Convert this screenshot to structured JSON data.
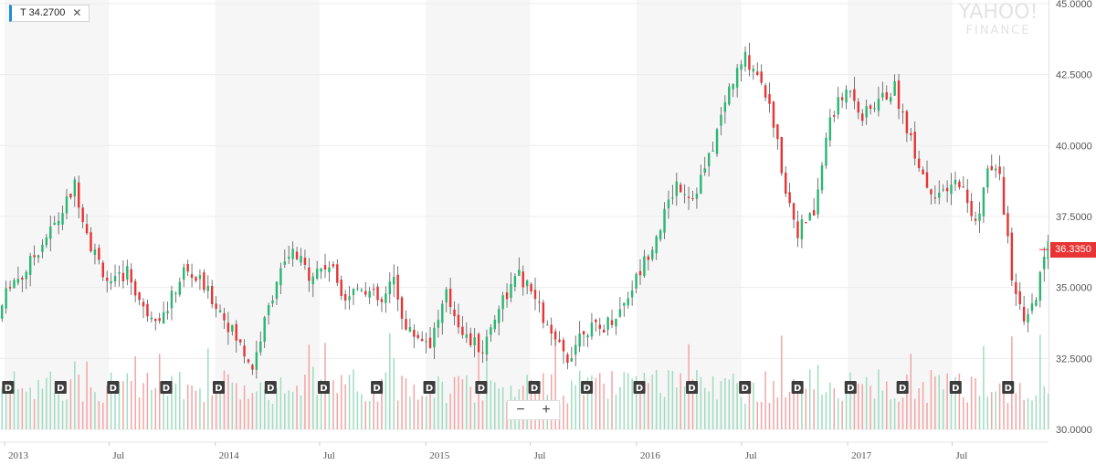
{
  "ticker": {
    "symbol": "T",
    "value": "34.2700",
    "close_icon": "close-icon"
  },
  "brand": {
    "line1": "YAHOO!",
    "line2": "FINANCE"
  },
  "zoom": {
    "minus": "−",
    "plus": "+"
  },
  "current_price": "36.3350",
  "dividend_marker": "D",
  "colors": {
    "up": "#2bb673",
    "down": "#e83434",
    "accent": "#1e8ed6",
    "band": "#f6f6f6",
    "grid": "#ececec"
  },
  "chart_data": {
    "type": "candlestick",
    "y_ticks": [
      "30.0000",
      "32.5000",
      "35.0000",
      "37.5000",
      "40.0000",
      "42.5000",
      "45.0000"
    ],
    "ylim": [
      30,
      45
    ],
    "x_ticks": [
      {
        "label": "2013",
        "date": "2013-01-01"
      },
      {
        "label": "Jul",
        "date": "2013-07-01"
      },
      {
        "label": "2014",
        "date": "2014-01-01"
      },
      {
        "label": "Jul",
        "date": "2014-07-01"
      },
      {
        "label": "2015",
        "date": "2015-01-01"
      },
      {
        "label": "Jul",
        "date": "2015-07-01"
      },
      {
        "label": "2016",
        "date": "2016-01-01"
      },
      {
        "label": "Jul",
        "date": "2016-07-01"
      },
      {
        "label": "2017",
        "date": "2017-01-01"
      },
      {
        "label": "Jul",
        "date": "2017-07-01"
      }
    ],
    "x_range": [
      "2012-12-24",
      "2017-12-15"
    ],
    "dividend_dates": [
      "2013-01-07",
      "2013-04-08",
      "2013-07-08",
      "2013-10-08",
      "2014-01-07",
      "2014-04-07",
      "2014-07-08",
      "2014-10-08",
      "2015-01-07",
      "2015-04-07",
      "2015-07-08",
      "2015-10-07",
      "2016-01-06",
      "2016-04-06",
      "2016-07-07",
      "2016-10-06",
      "2017-01-06",
      "2017-04-06",
      "2017-07-07",
      "2017-10-06"
    ],
    "price_path": [
      [
        "2012-12-24",
        33.9
      ],
      [
        "2013-01-14",
        35.2
      ],
      [
        "2013-02-04",
        35.4
      ],
      [
        "2013-03-11",
        36.6
      ],
      [
        "2013-04-08",
        37.4
      ],
      [
        "2013-05-06",
        38.6
      ],
      [
        "2013-06-03",
        36.5
      ],
      [
        "2013-07-08",
        35.0
      ],
      [
        "2013-08-05",
        35.6
      ],
      [
        "2013-09-02",
        34.2
      ],
      [
        "2013-10-07",
        34.0
      ],
      [
        "2013-11-11",
        35.6
      ],
      [
        "2013-12-09",
        35.2
      ],
      [
        "2014-01-13",
        34.2
      ],
      [
        "2014-02-10",
        33.2
      ],
      [
        "2014-03-10",
        32.2
      ],
      [
        "2014-04-21",
        35.3
      ],
      [
        "2014-05-19",
        36.2
      ],
      [
        "2014-06-16",
        35.5
      ],
      [
        "2014-07-21",
        35.8
      ],
      [
        "2014-08-18",
        34.7
      ],
      [
        "2014-09-15",
        35.1
      ],
      [
        "2014-10-20",
        34.4
      ],
      [
        "2014-11-10",
        35.3
      ],
      [
        "2014-12-01",
        33.5
      ],
      [
        "2015-01-12",
        33.1
      ],
      [
        "2015-02-09",
        34.7
      ],
      [
        "2015-03-16",
        33.2
      ],
      [
        "2015-04-13",
        32.8
      ],
      [
        "2015-05-11",
        34.4
      ],
      [
        "2015-06-15",
        35.4
      ],
      [
        "2015-07-13",
        34.6
      ],
      [
        "2015-08-10",
        33.2
      ],
      [
        "2015-09-07",
        32.5
      ],
      [
        "2015-10-05",
        33.6
      ],
      [
        "2015-11-02",
        33.5
      ],
      [
        "2015-12-07",
        34.2
      ],
      [
        "2016-01-11",
        35.6
      ],
      [
        "2016-02-15",
        37.2
      ],
      [
        "2016-03-14",
        38.7
      ],
      [
        "2016-04-11",
        38.2
      ],
      [
        "2016-05-09",
        39.5
      ],
      [
        "2016-06-13",
        42.0
      ],
      [
        "2016-07-11",
        43.1
      ],
      [
        "2016-08-08",
        42.4
      ],
      [
        "2016-08-29",
        40.8
      ],
      [
        "2016-09-19",
        38.5
      ],
      [
        "2016-10-10",
        37.0
      ],
      [
        "2016-11-07",
        37.6
      ],
      [
        "2016-12-05",
        41.0
      ],
      [
        "2017-01-09",
        42.1
      ],
      [
        "2017-01-30",
        41.0
      ],
      [
        "2017-02-27",
        41.6
      ],
      [
        "2017-03-27",
        42.0
      ],
      [
        "2017-04-24",
        40.2
      ],
      [
        "2017-05-22",
        38.6
      ],
      [
        "2017-06-19",
        38.2
      ],
      [
        "2017-07-17",
        38.8
      ],
      [
        "2017-08-14",
        37.2
      ],
      [
        "2017-09-04",
        39.1
      ],
      [
        "2017-09-25",
        39.0
      ],
      [
        "2017-10-16",
        35.4
      ],
      [
        "2017-11-06",
        33.6
      ],
      [
        "2017-11-27",
        34.6
      ],
      [
        "2017-12-15",
        36.4
      ]
    ]
  }
}
